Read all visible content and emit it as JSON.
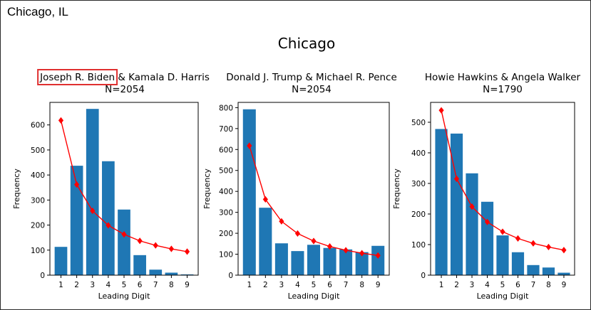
{
  "window": {
    "location_label": "Chicago, IL"
  },
  "figure": {
    "suptitle": "Chicago",
    "colors": {
      "bar": "#1f77b4",
      "expected": "#ff0000",
      "highlight": "#e03030"
    }
  },
  "chart_data": [
    {
      "type": "bar",
      "title_line1": "Joseph R. Biden & Kamala D. Harris",
      "title_line2": "N=2054",
      "highlighted_text": "Joseph R. Biden",
      "xlabel": "Leading Digit",
      "ylabel": "Frequency",
      "categories": [
        "1",
        "2",
        "3",
        "4",
        "5",
        "6",
        "7",
        "8",
        "9"
      ],
      "ylim": [
        0,
        690
      ],
      "yticks": [
        0,
        100,
        200,
        300,
        400,
        500,
        600
      ],
      "series": [
        {
          "kind": "bar",
          "values": [
            113,
            437,
            664,
            455,
            262,
            80,
            22,
            10,
            3
          ]
        },
        {
          "kind": "line",
          "values": [
            618,
            362,
            257,
            199,
            163,
            137,
            119,
            105,
            94
          ]
        }
      ]
    },
    {
      "type": "bar",
      "title_line1": "Donald J. Trump & Michael R. Pence",
      "title_line2": "N=2054",
      "xlabel": "Leading Digit",
      "ylabel": "Frequency",
      "categories": [
        "1",
        "2",
        "3",
        "4",
        "5",
        "6",
        "7",
        "8",
        "9"
      ],
      "ylim": [
        0,
        825
      ],
      "yticks": [
        0,
        100,
        200,
        300,
        400,
        500,
        600,
        700,
        800
      ],
      "series": [
        {
          "kind": "bar",
          "values": [
            792,
            322,
            152,
            115,
            145,
            130,
            123,
            110,
            140
          ]
        },
        {
          "kind": "line",
          "values": [
            618,
            362,
            257,
            199,
            163,
            137,
            119,
            105,
            94
          ]
        }
      ]
    },
    {
      "type": "bar",
      "title_line1": "Howie Hawkins & Angela Walker",
      "title_line2": "N=1790",
      "xlabel": "Leading Digit",
      "ylabel": "Frequency",
      "categories": [
        "1",
        "2",
        "3",
        "4",
        "5",
        "6",
        "7",
        "8",
        "9"
      ],
      "ylim": [
        0,
        565
      ],
      "yticks": [
        0,
        100,
        200,
        300,
        400,
        500
      ],
      "series": [
        {
          "kind": "bar",
          "values": [
            478,
            463,
            333,
            240,
            130,
            75,
            33,
            25,
            8
          ]
        },
        {
          "kind": "line",
          "values": [
            539,
            315,
            224,
            174,
            142,
            120,
            104,
            92,
            82
          ]
        }
      ]
    }
  ]
}
